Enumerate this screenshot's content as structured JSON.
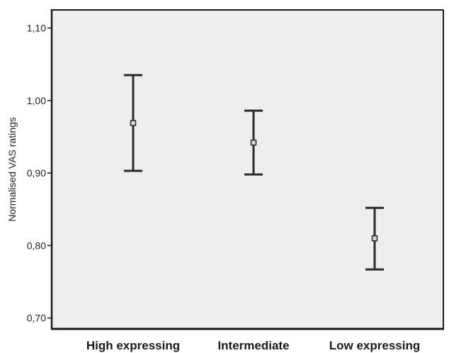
{
  "chart_data": {
    "type": "errorbar",
    "title": "",
    "xlabel": "",
    "ylabel": "Normalised VAS ratings",
    "categories": [
      "High expressing",
      "Intermediate",
      "Low expressing"
    ],
    "series": [
      {
        "mean": [
          0.969,
          0.942,
          0.81
        ],
        "lower": [
          0.903,
          0.898,
          0.767
        ],
        "upper": [
          1.035,
          0.986,
          0.852
        ]
      }
    ],
    "ylim": [
      0.685,
      1.125
    ],
    "yticks": [
      0.7,
      0.8,
      0.9,
      1.0,
      1.1
    ],
    "ytick_labels": [
      "0,70",
      "0,80",
      "0,90",
      "1,00",
      "1,10"
    ],
    "grid": false,
    "colors": {
      "plot_background": "#eeeeee",
      "frame": "#1a1a1a",
      "marks": "#2a2a2a"
    }
  }
}
